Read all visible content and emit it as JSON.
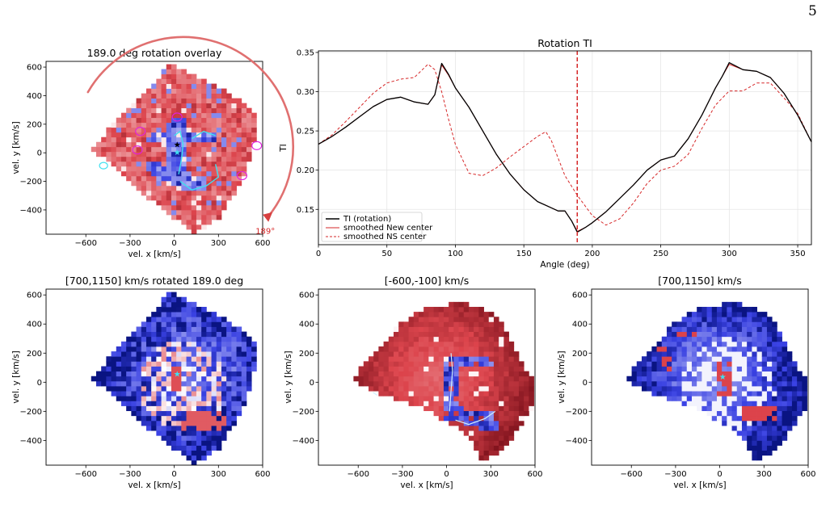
{
  "page": {
    "number": "5"
  },
  "colors": {
    "red": "#d62728",
    "blue": "#1f2ff5",
    "black": "#000000",
    "cyan": "#3fe0f0",
    "magenta": "#e020e0"
  },
  "chart_data": [
    {
      "type": "heatmap",
      "title": "189.0 deg rotation overlay",
      "xlabel": "vel. x [km/s]",
      "ylabel": "vel. y [km/s]",
      "xlim": [
        -870,
        600
      ],
      "ylim": [
        -570,
        640
      ],
      "xticks": [
        -600,
        -300,
        0,
        300,
        600
      ],
      "yticks": [
        -400,
        -200,
        0,
        200,
        400,
        600
      ],
      "annotation": "189°",
      "colormap": "bwr"
    },
    {
      "type": "line",
      "title": "Rotation TI",
      "xlabel": "Angle (deg)",
      "ylabel": "TI",
      "xlim": [
        0,
        360
      ],
      "ylim": [
        0.105,
        0.352
      ],
      "xticks": [
        0,
        50,
        100,
        150,
        200,
        250,
        300,
        350
      ],
      "yticks": [
        0.15,
        0.2,
        0.25,
        0.3,
        0.35
      ],
      "vline": 189,
      "grid": true,
      "legend_position": "lower-left",
      "series": [
        {
          "name": "TI (rotation)",
          "style": "solid",
          "color": "#000000",
          "x": [
            0,
            10,
            20,
            30,
            40,
            50,
            60,
            70,
            80,
            85,
            90,
            95,
            100,
            110,
            120,
            130,
            140,
            150,
            160,
            170,
            175,
            180,
            185,
            189,
            195,
            200,
            210,
            220,
            230,
            240,
            250,
            260,
            270,
            280,
            290,
            295,
            300,
            310,
            320,
            330,
            340,
            350,
            360
          ],
          "y": [
            0.233,
            0.243,
            0.255,
            0.268,
            0.281,
            0.29,
            0.293,
            0.287,
            0.284,
            0.296,
            0.336,
            0.322,
            0.305,
            0.28,
            0.25,
            0.22,
            0.195,
            0.175,
            0.16,
            0.152,
            0.148,
            0.148,
            0.135,
            0.121,
            0.127,
            0.133,
            0.147,
            0.164,
            0.181,
            0.2,
            0.213,
            0.218,
            0.24,
            0.27,
            0.305,
            0.32,
            0.337,
            0.328,
            0.326,
            0.318,
            0.298,
            0.27,
            0.236
          ]
        },
        {
          "name": "smoothed New center",
          "style": "solid",
          "color": "#d62728",
          "x": [
            0,
            10,
            20,
            30,
            40,
            50,
            60,
            70,
            80,
            85,
            90,
            95,
            100,
            110,
            120,
            130,
            140,
            150,
            160,
            170,
            175,
            180,
            185,
            189,
            195,
            200,
            210,
            220,
            230,
            240,
            250,
            260,
            270,
            280,
            290,
            295,
            300,
            310,
            320,
            330,
            340,
            350,
            360
          ],
          "y": [
            0.233,
            0.243,
            0.255,
            0.268,
            0.281,
            0.29,
            0.293,
            0.287,
            0.284,
            0.296,
            0.334,
            0.321,
            0.305,
            0.28,
            0.25,
            0.22,
            0.195,
            0.175,
            0.16,
            0.152,
            0.148,
            0.148,
            0.135,
            0.122,
            0.127,
            0.133,
            0.147,
            0.164,
            0.181,
            0.2,
            0.213,
            0.218,
            0.24,
            0.27,
            0.305,
            0.32,
            0.335,
            0.328,
            0.326,
            0.318,
            0.298,
            0.27,
            0.236
          ]
        },
        {
          "name": "smoothed NS center",
          "style": "dashed",
          "color": "#d62728",
          "x": [
            0,
            10,
            20,
            30,
            40,
            50,
            60,
            70,
            80,
            85,
            90,
            95,
            100,
            110,
            120,
            130,
            140,
            150,
            160,
            166,
            170,
            180,
            189,
            200,
            210,
            220,
            230,
            240,
            250,
            260,
            270,
            280,
            290,
            300,
            310,
            320,
            330,
            340,
            350,
            360
          ],
          "y": [
            0.233,
            0.245,
            0.262,
            0.28,
            0.298,
            0.311,
            0.316,
            0.318,
            0.335,
            0.328,
            0.3,
            0.265,
            0.233,
            0.196,
            0.193,
            0.203,
            0.217,
            0.23,
            0.243,
            0.249,
            0.238,
            0.193,
            0.168,
            0.142,
            0.13,
            0.138,
            0.158,
            0.183,
            0.2,
            0.205,
            0.22,
            0.253,
            0.283,
            0.301,
            0.301,
            0.311,
            0.311,
            0.292,
            0.272,
            0.236
          ]
        }
      ]
    },
    {
      "type": "heatmap",
      "title": "[700,1150] km/s rotated 189.0 deg",
      "xlabel": "vel. x [km/s]",
      "ylabel": "vel. y [km/s]",
      "xlim": [
        -870,
        600
      ],
      "ylim": [
        -570,
        640
      ],
      "xticks": [
        -600,
        -300,
        0,
        300,
        600
      ],
      "yticks": [
        -400,
        -200,
        0,
        200,
        400,
        600
      ],
      "colormap": "bwr"
    },
    {
      "type": "heatmap",
      "title": "[-600,-100] km/s",
      "xlabel": "vel. x [km/s]",
      "ylabel": "vel. y [km/s]",
      "xlim": [
        -870,
        600
      ],
      "ylim": [
        -570,
        640
      ],
      "xticks": [
        -600,
        -300,
        0,
        300,
        600
      ],
      "yticks": [
        -400,
        -200,
        0,
        200,
        400,
        600
      ],
      "colormap": "bwr"
    },
    {
      "type": "heatmap",
      "title": "[700,1150] km/s",
      "xlabel": "vel. x [km/s]",
      "ylabel": "vel. y [km/s]",
      "xlim": [
        -870,
        600
      ],
      "ylim": [
        -570,
        640
      ],
      "xticks": [
        -600,
        -300,
        0,
        300,
        600
      ],
      "yticks": [
        -400,
        -200,
        0,
        200,
        400,
        600
      ],
      "colormap": "bwr"
    }
  ]
}
